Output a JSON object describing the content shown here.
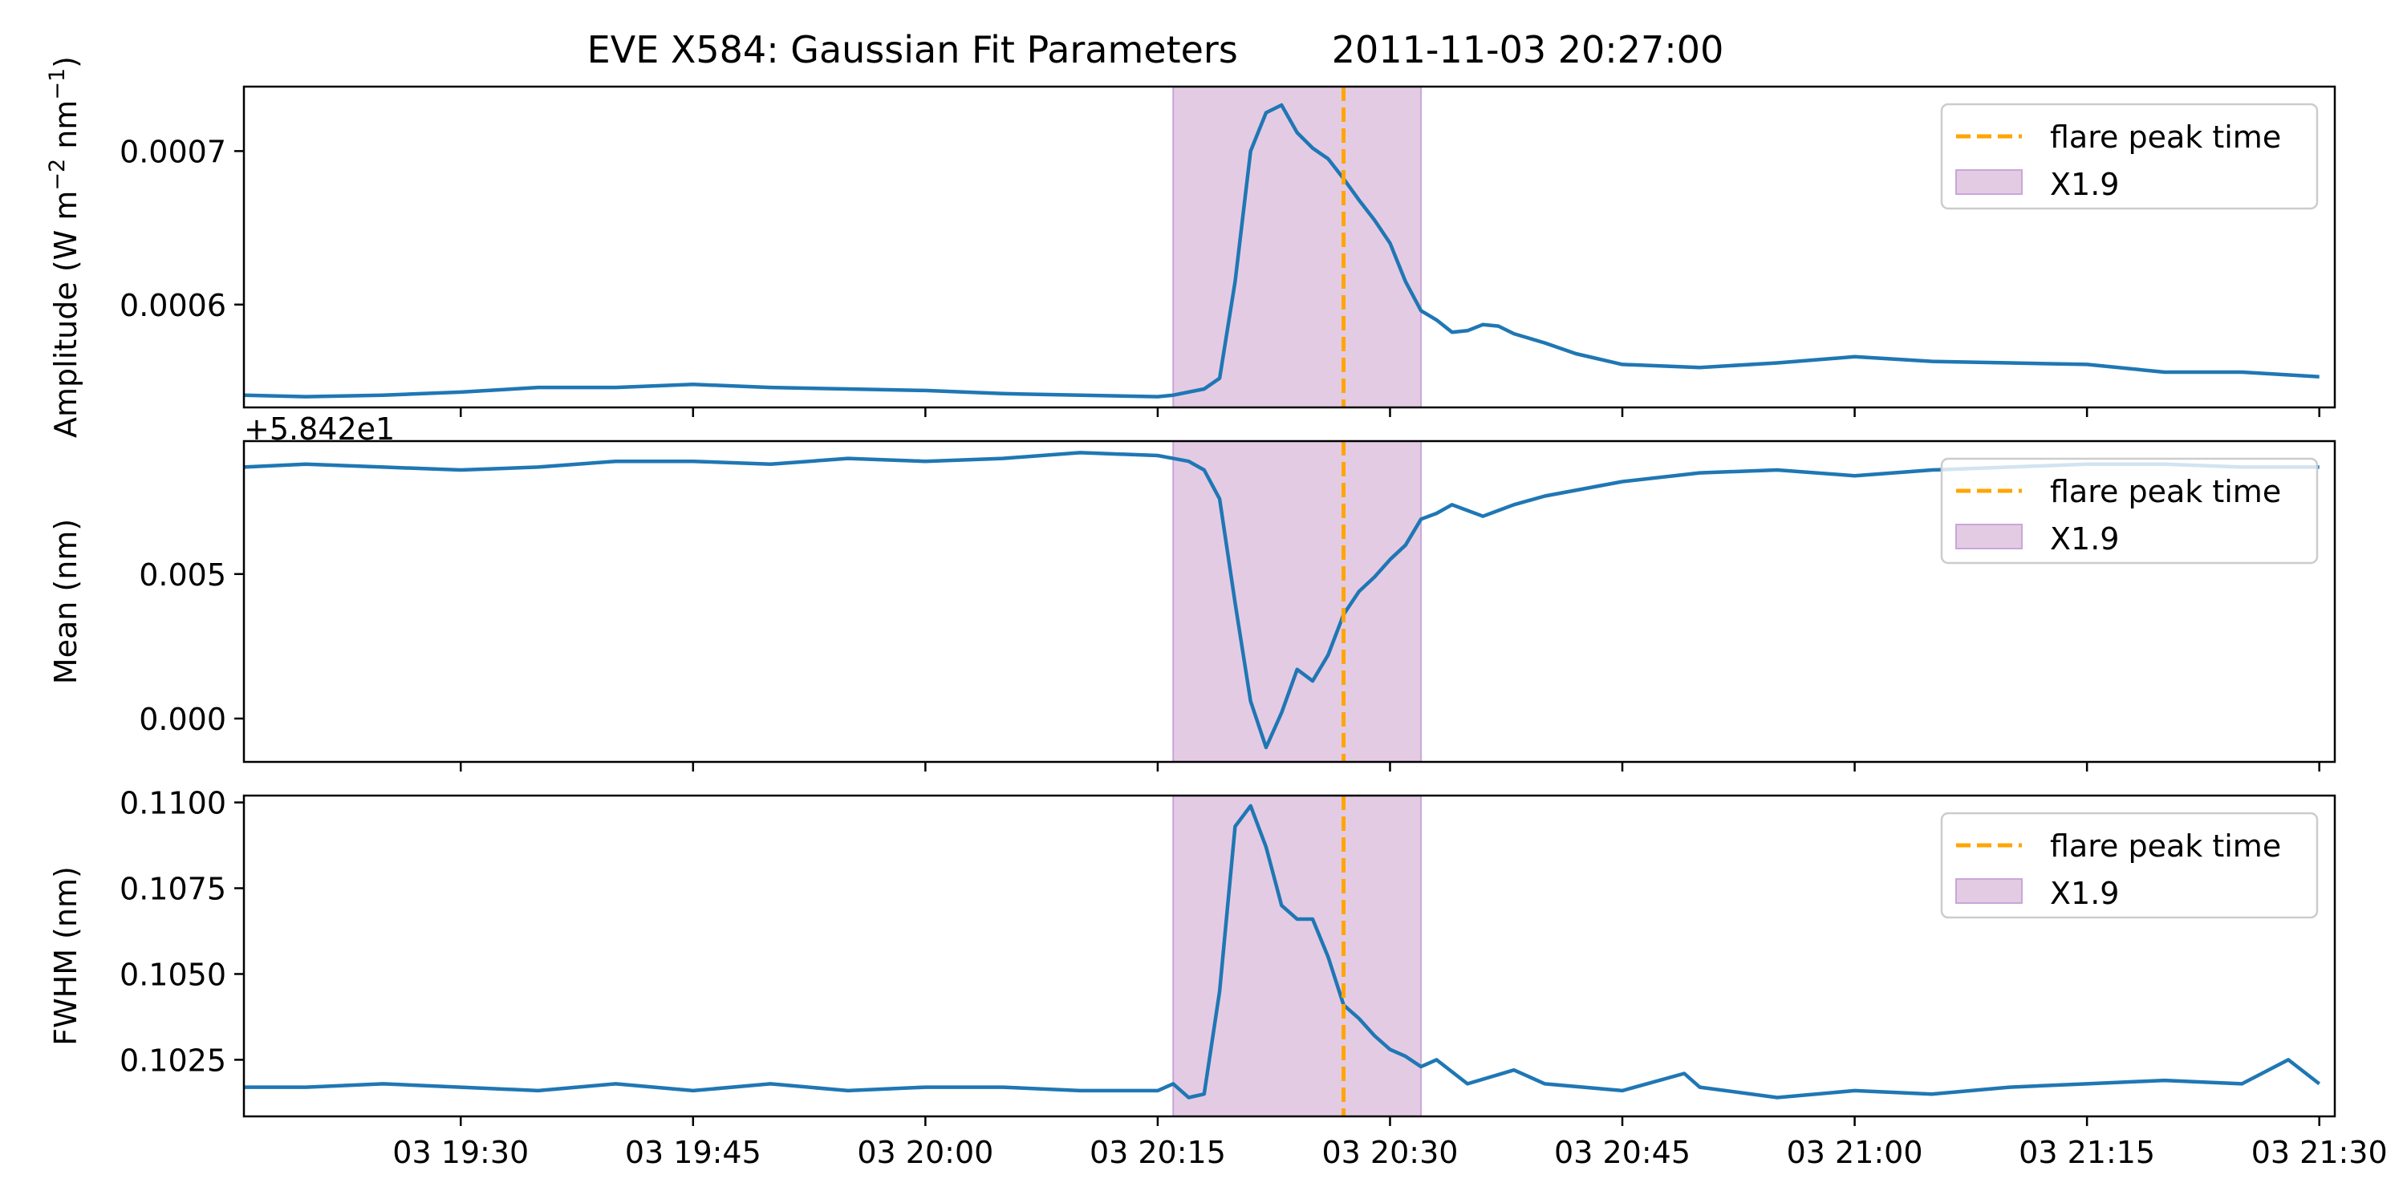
{
  "title": "EVE X584: Gaussian Fit Parameters        2011-11-03 20:27:00",
  "colors": {
    "line": "#1f77b4",
    "peak_line": "#ffa500",
    "flare_span": "#e4cbe4",
    "flare_span_edge": "#c9a6d9"
  },
  "chart_data": [
    {
      "type": "line",
      "ylabel": "Amplitude (W m",
      "ylabel_sup1": "−2",
      "ylabel_mid": " nm",
      "ylabel_sup2": "−1",
      "ylabel_end": ")",
      "xlim": [
        "2011-11-03 19:16",
        "2011-11-03 21:31"
      ],
      "ylim": [
        0.000533,
        0.000742
      ],
      "yticks": [
        {
          "value": 0.0006,
          "label": "0.0006"
        },
        {
          "value": 0.0007,
          "label": "0.0007"
        }
      ],
      "offset_label": "+5.842e1",
      "legend": {
        "position": "upper right",
        "entries": [
          "flare peak time",
          "X1.9"
        ]
      },
      "flare_span": {
        "start": "2011-11-03 20:16",
        "end": "2011-11-03 20:32",
        "label": "X1.9"
      },
      "flare_peak_time": "2011-11-03 20:27",
      "series": [
        {
          "x": [
            "19:16",
            "19:20",
            "19:25",
            "19:30",
            "19:35",
            "19:40",
            "19:45",
            "19:50",
            "19:55",
            "20:00",
            "20:05",
            "20:10",
            "20:15",
            "20:16",
            "20:18",
            "20:19",
            "20:20",
            "20:21",
            "20:22",
            "20:23",
            "20:24",
            "20:25",
            "20:26",
            "20:27",
            "20:28",
            "20:29",
            "20:30",
            "20:31",
            "20:32",
            "20:33",
            "20:34",
            "20:35",
            "20:36",
            "20:37",
            "20:38",
            "20:40",
            "20:42",
            "20:45",
            "20:50",
            "20:55",
            "21:00",
            "21:05",
            "21:10",
            "21:15",
            "21:20",
            "21:25",
            "21:30"
          ],
          "y": [
            0.000541,
            0.00054,
            0.000541,
            0.000543,
            0.000546,
            0.000546,
            0.000548,
            0.000546,
            0.000545,
            0.000544,
            0.000542,
            0.000541,
            0.00054,
            0.000541,
            0.000545,
            0.000552,
            0.000615,
            0.0007,
            0.000725,
            0.00073,
            0.000712,
            0.000702,
            0.000695,
            0.000682,
            0.000668,
            0.000655,
            0.00064,
            0.000615,
            0.000596,
            0.00059,
            0.000582,
            0.000583,
            0.000587,
            0.000586,
            0.000581,
            0.000575,
            0.000568,
            0.000561,
            0.000559,
            0.000562,
            0.000566,
            0.000563,
            0.000562,
            0.000561,
            0.000556,
            0.000556,
            0.000553
          ]
        }
      ]
    },
    {
      "type": "line",
      "ylabel": "Mean (nm)",
      "xlim": [
        "2011-11-03 19:16",
        "2011-11-03 21:31"
      ],
      "ylim": [
        -0.0015,
        0.0096
      ],
      "yticks": [
        {
          "value": 0.0,
          "label": "0.000"
        },
        {
          "value": 0.005,
          "label": "0.005"
        }
      ],
      "legend": {
        "position": "upper right",
        "entries": [
          "flare peak time",
          "X1.9"
        ]
      },
      "flare_span": {
        "start": "2011-11-03 20:16",
        "end": "2011-11-03 20:32",
        "label": "X1.9"
      },
      "flare_peak_time": "2011-11-03 20:27",
      "series": [
        {
          "x": [
            "19:16",
            "19:20",
            "19:25",
            "19:30",
            "19:35",
            "19:40",
            "19:45",
            "19:50",
            "19:55",
            "20:00",
            "20:05",
            "20:10",
            "20:15",
            "20:16",
            "20:17",
            "20:18",
            "20:19",
            "20:20",
            "20:21",
            "20:22",
            "20:23",
            "20:24",
            "20:25",
            "20:26",
            "20:27",
            "20:28",
            "20:29",
            "20:30",
            "20:31",
            "20:32",
            "20:33",
            "20:34",
            "20:35",
            "20:36",
            "20:37",
            "20:38",
            "20:40",
            "20:45",
            "20:50",
            "20:55",
            "21:00",
            "21:05",
            "21:10",
            "21:15",
            "21:20",
            "21:25",
            "21:30"
          ],
          "y": [
            0.0087,
            0.0088,
            0.0087,
            0.0086,
            0.0087,
            0.0089,
            0.0089,
            0.0088,
            0.009,
            0.0089,
            0.009,
            0.0092,
            0.0091,
            0.009,
            0.0089,
            0.0086,
            0.0076,
            0.004,
            0.0006,
            -0.001,
            0.0002,
            0.0017,
            0.0013,
            0.0022,
            0.0036,
            0.0044,
            0.0049,
            0.0055,
            0.006,
            0.0069,
            0.0071,
            0.0074,
            0.0072,
            0.007,
            0.0072,
            0.0074,
            0.0077,
            0.0082,
            0.0085,
            0.0086,
            0.0084,
            0.0086,
            0.0087,
            0.0088,
            0.0088,
            0.0087,
            0.0087
          ]
        }
      ]
    },
    {
      "type": "line",
      "ylabel": "FWHM (nm)",
      "xlim": [
        "2011-11-03 19:16",
        "2011-11-03 21:31"
      ],
      "ylim": [
        0.10085,
        0.1102
      ],
      "yticks": [
        {
          "value": 0.1025,
          "label": "0.1025"
        },
        {
          "value": 0.105,
          "label": "0.1050"
        },
        {
          "value": 0.1075,
          "label": "0.1075"
        },
        {
          "value": 0.11,
          "label": "0.1100"
        }
      ],
      "xticks": [
        "03 19:30",
        "03 19:45",
        "03 20:00",
        "03 20:15",
        "03 20:30",
        "03 20:45",
        "03 21:00",
        "03 21:15",
        "03 21:30"
      ],
      "legend": {
        "position": "upper right",
        "entries": [
          "flare peak time",
          "X1.9"
        ]
      },
      "flare_span": {
        "start": "2011-11-03 20:16",
        "end": "2011-11-03 20:32",
        "label": "X1.9"
      },
      "flare_peak_time": "2011-11-03 20:27",
      "series": [
        {
          "x": [
            "19:16",
            "19:20",
            "19:25",
            "19:30",
            "19:35",
            "19:40",
            "19:45",
            "19:50",
            "19:55",
            "20:00",
            "20:05",
            "20:10",
            "20:15",
            "20:16",
            "20:17",
            "20:18",
            "20:19",
            "20:20",
            "20:21",
            "20:22",
            "20:23",
            "20:24",
            "20:25",
            "20:26",
            "20:27",
            "20:28",
            "20:29",
            "20:30",
            "20:31",
            "20:32",
            "20:33",
            "20:35",
            "20:38",
            "20:40",
            "20:45",
            "20:49",
            "20:50",
            "20:55",
            "21:00",
            "21:05",
            "21:10",
            "21:15",
            "21:20",
            "21:25",
            "21:28",
            "21:30"
          ],
          "y": [
            0.1017,
            0.1017,
            0.1018,
            0.1017,
            0.1016,
            0.1018,
            0.1016,
            0.1018,
            0.1016,
            0.1017,
            0.1017,
            0.1016,
            0.1016,
            0.1018,
            0.1014,
            0.1015,
            0.1045,
            0.1093,
            0.1099,
            0.1087,
            0.107,
            0.1066,
            0.1066,
            0.1055,
            0.1041,
            0.1037,
            0.1032,
            0.1028,
            0.1026,
            0.1023,
            0.1025,
            0.1018,
            0.1022,
            0.1018,
            0.1016,
            0.1021,
            0.1017,
            0.1014,
            0.1016,
            0.1015,
            0.1017,
            0.1018,
            0.1019,
            0.1018,
            0.1025,
            0.1018
          ]
        }
      ]
    }
  ]
}
